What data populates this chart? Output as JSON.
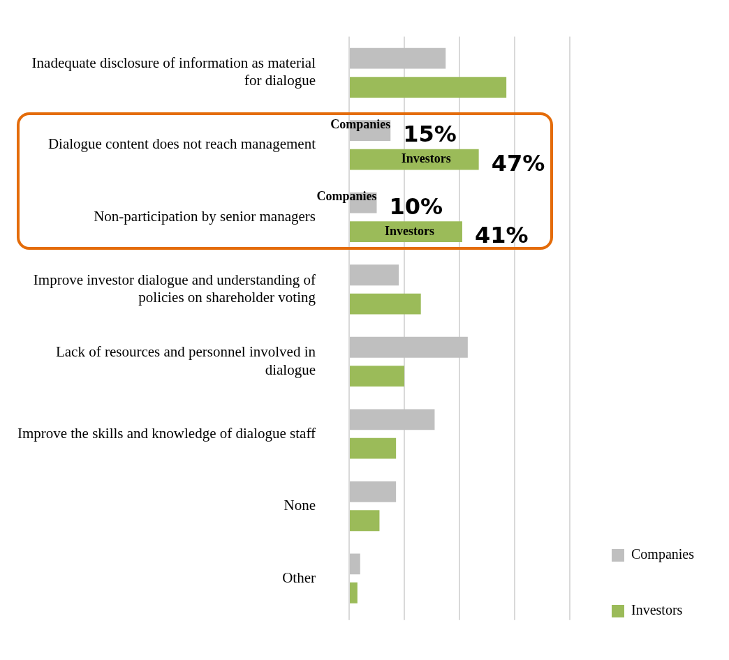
{
  "chart_data": {
    "type": "bar",
    "orientation": "horizontal",
    "categories": [
      "Inadequate disclosure of information as material for dialogue",
      "Dialogue content does not reach management",
      "Non-participation by senior managers",
      "Improve investor dialogue and understanding of policies on shareholder voting",
      "Lack of resources and personnel involved in dialogue",
      "Improve the skills and knowledge of dialogue staff",
      "None",
      "Other"
    ],
    "series": [
      {
        "name": "Companies",
        "color": "#bfbfbf",
        "values": [
          35,
          15,
          10,
          18,
          43,
          31,
          17,
          4
        ],
        "value_labels": [
          null,
          "15%",
          "10%",
          null,
          null,
          null,
          null,
          null
        ]
      },
      {
        "name": "Investors",
        "color": "#9bbb59",
        "values": [
          57,
          47,
          41,
          26,
          20,
          17,
          11,
          3
        ],
        "value_labels": [
          null,
          "47%",
          "41%",
          null,
          null,
          null,
          null,
          null
        ]
      }
    ],
    "xlim": [
      0,
      80
    ],
    "xticks": [
      {
        "value": 0,
        "label": null
      },
      {
        "value": 20,
        "label": null
      },
      {
        "value": 40,
        "label": null
      },
      {
        "value": 60,
        "label": null
      },
      {
        "value": 80,
        "label": null
      }
    ],
    "tick_labels": "y",
    "grid": "x",
    "legend": "right",
    "annotations": [
      "Companies",
      "Investors",
      "Companies",
      "Investors"
    ]
  }
}
